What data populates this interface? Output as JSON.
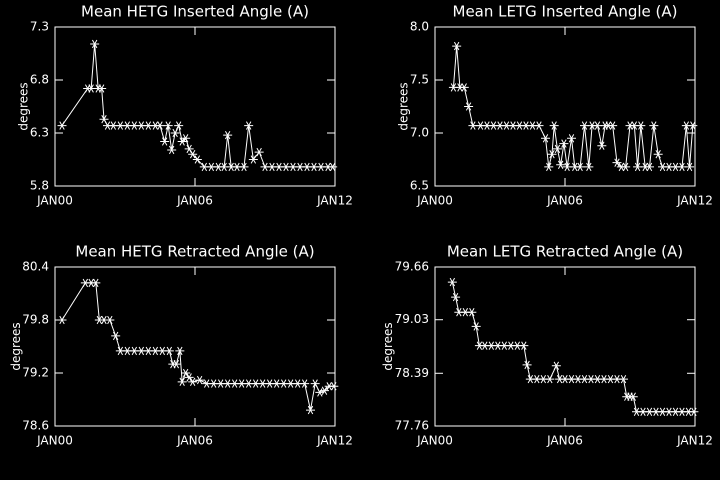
{
  "chart_data": [
    {
      "type": "line",
      "title": "Mean HETG Inserted Angle (A)",
      "ylabel": "degrees",
      "color": "#ffffff",
      "marker": "asterisk",
      "xlim": [
        2000,
        2012
      ],
      "xticks": [
        {
          "value": 2000,
          "label": "JAN00"
        },
        {
          "value": 2006,
          "label": "JAN06"
        },
        {
          "value": 2012,
          "label": "JAN12"
        }
      ],
      "ylim": [
        5.8,
        7.3
      ],
      "yticks": [
        5.8,
        6.3,
        6.8,
        7.3
      ],
      "x": [
        2000.3,
        2001.4,
        2001.55,
        2001.7,
        2001.85,
        2002.0,
        2002.1,
        2002.25,
        2002.5,
        2002.8,
        2003.1,
        2003.4,
        2003.7,
        2004.0,
        2004.3,
        2004.5,
        2004.7,
        2004.85,
        2005.0,
        2005.15,
        2005.3,
        2005.45,
        2005.6,
        2005.75,
        2005.9,
        2006.1,
        2006.4,
        2006.7,
        2007.0,
        2007.25,
        2007.4,
        2007.55,
        2007.8,
        2008.1,
        2008.3,
        2008.5,
        2008.75,
        2009.0,
        2009.3,
        2009.6,
        2009.9,
        2010.2,
        2010.5,
        2010.8,
        2011.1,
        2011.4,
        2011.7,
        2011.9
      ],
      "values": [
        6.37,
        6.72,
        6.72,
        7.14,
        6.72,
        6.72,
        6.43,
        6.37,
        6.37,
        6.37,
        6.37,
        6.37,
        6.37,
        6.37,
        6.37,
        6.37,
        6.22,
        6.37,
        6.14,
        6.3,
        6.37,
        6.22,
        6.25,
        6.15,
        6.1,
        6.05,
        5.98,
        5.98,
        5.98,
        5.98,
        6.28,
        5.98,
        5.98,
        5.98,
        6.37,
        6.05,
        6.12,
        5.98,
        5.98,
        5.98,
        5.98,
        5.98,
        5.98,
        5.98,
        5.98,
        5.98,
        5.98,
        5.98
      ]
    },
    {
      "type": "line",
      "title": "Mean LETG Inserted Angle (A)",
      "ylabel": "degrees",
      "color": "#ffffff",
      "marker": "asterisk",
      "xlim": [
        2000,
        2012
      ],
      "xticks": [
        {
          "value": 2000,
          "label": "JAN00"
        },
        {
          "value": 2006,
          "label": "JAN06"
        },
        {
          "value": 2012,
          "label": "JAN12"
        }
      ],
      "ylim": [
        6.5,
        8.0
      ],
      "yticks": [
        6.5,
        {
          "value": 7,
          "label": "7.0"
        },
        7.5,
        {
          "value": 8,
          "label": "8.0"
        }
      ],
      "x": [
        2000.85,
        2001.0,
        2001.15,
        2001.35,
        2001.55,
        2001.75,
        2002.1,
        2002.4,
        2002.7,
        2003.0,
        2003.3,
        2003.6,
        2003.9,
        2004.2,
        2004.5,
        2004.8,
        2005.1,
        2005.25,
        2005.4,
        2005.5,
        2005.65,
        2005.8,
        2005.95,
        2006.1,
        2006.3,
        2006.45,
        2006.7,
        2006.9,
        2007.1,
        2007.25,
        2007.5,
        2007.7,
        2007.85,
        2008.0,
        2008.2,
        2008.4,
        2008.6,
        2008.8,
        2009.0,
        2009.2,
        2009.35,
        2009.5,
        2009.7,
        2009.9,
        2010.1,
        2010.3,
        2010.5,
        2010.8,
        2011.1,
        2011.4,
        2011.6,
        2011.75,
        2011.9
      ],
      "values": [
        7.43,
        7.82,
        7.43,
        7.43,
        7.25,
        7.07,
        7.07,
        7.07,
        7.07,
        7.07,
        7.07,
        7.07,
        7.07,
        7.07,
        7.07,
        7.07,
        6.95,
        6.68,
        6.8,
        7.07,
        6.85,
        6.7,
        6.9,
        6.68,
        6.95,
        6.68,
        6.68,
        7.07,
        6.68,
        7.07,
        7.07,
        6.88,
        7.07,
        7.07,
        7.07,
        6.72,
        6.68,
        6.68,
        7.07,
        7.07,
        6.68,
        7.07,
        6.68,
        6.68,
        7.07,
        6.8,
        6.68,
        6.68,
        6.68,
        6.68,
        7.07,
        6.68,
        7.07
      ]
    },
    {
      "type": "line",
      "title": "Mean HETG Retracted Angle (A)",
      "ylabel": "degrees",
      "color": "#ffffff",
      "marker": "asterisk",
      "xlim": [
        2000,
        2012
      ],
      "xticks": [
        {
          "value": 2000,
          "label": "JAN00"
        },
        {
          "value": 2006,
          "label": "JAN06"
        },
        {
          "value": 2012,
          "label": "JAN12"
        }
      ],
      "ylim": [
        78.6,
        80.4
      ],
      "yticks": [
        78.6,
        79.2,
        79.8,
        80.4
      ],
      "x": [
        2000.3,
        2001.3,
        2001.55,
        2001.75,
        2001.9,
        2002.1,
        2002.35,
        2002.6,
        2002.8,
        2003.1,
        2003.4,
        2003.7,
        2004.0,
        2004.3,
        2004.6,
        2004.9,
        2005.05,
        2005.2,
        2005.35,
        2005.45,
        2005.6,
        2005.75,
        2005.9,
        2006.2,
        2006.5,
        2006.8,
        2007.1,
        2007.4,
        2007.7,
        2008.0,
        2008.3,
        2008.6,
        2008.9,
        2009.2,
        2009.5,
        2009.8,
        2010.1,
        2010.4,
        2010.7,
        2010.95,
        2011.15,
        2011.35,
        2011.55,
        2011.75,
        2011.95
      ],
      "values": [
        79.8,
        80.22,
        80.22,
        80.22,
        79.8,
        79.8,
        79.8,
        79.62,
        79.45,
        79.45,
        79.45,
        79.45,
        79.45,
        79.45,
        79.45,
        79.45,
        79.3,
        79.3,
        79.45,
        79.1,
        79.2,
        79.15,
        79.1,
        79.12,
        79.08,
        79.08,
        79.08,
        79.08,
        79.08,
        79.08,
        79.08,
        79.08,
        79.08,
        79.08,
        79.08,
        79.08,
        79.08,
        79.08,
        79.08,
        78.78,
        79.08,
        78.98,
        79.0,
        79.05,
        79.05
      ]
    },
    {
      "type": "line",
      "title": "Mean LETG Retracted Angle (A)",
      "ylabel": "degrees",
      "color": "#ffffff",
      "marker": "asterisk",
      "xlim": [
        2000,
        2012
      ],
      "xticks": [
        {
          "value": 2000,
          "label": "JAN00"
        },
        {
          "value": 2006,
          "label": "JAN06"
        },
        {
          "value": 2012,
          "label": "JAN12"
        }
      ],
      "ylim": [
        77.76,
        79.66
      ],
      "yticks": [
        77.76,
        78.39,
        79.03,
        79.66
      ],
      "x": [
        2000.8,
        2000.95,
        2001.1,
        2001.4,
        2001.7,
        2001.9,
        2002.05,
        2002.3,
        2002.6,
        2002.9,
        2003.2,
        2003.5,
        2003.8,
        2004.1,
        2004.25,
        2004.4,
        2004.7,
        2005.0,
        2005.3,
        2005.6,
        2005.75,
        2006.0,
        2006.3,
        2006.6,
        2006.9,
        2007.2,
        2007.5,
        2007.8,
        2008.1,
        2008.4,
        2008.7,
        2008.85,
        2009.0,
        2009.15,
        2009.3,
        2009.6,
        2009.9,
        2010.2,
        2010.5,
        2010.8,
        2011.1,
        2011.4,
        2011.7,
        2011.95
      ],
      "values": [
        79.48,
        79.3,
        79.12,
        79.12,
        79.12,
        78.95,
        78.72,
        78.72,
        78.72,
        78.72,
        78.72,
        78.72,
        78.72,
        78.72,
        78.49,
        78.32,
        78.32,
        78.32,
        78.32,
        78.48,
        78.32,
        78.32,
        78.32,
        78.32,
        78.32,
        78.32,
        78.32,
        78.32,
        78.32,
        78.32,
        78.32,
        78.11,
        78.11,
        78.11,
        77.93,
        77.93,
        77.93,
        77.93,
        77.93,
        77.93,
        77.93,
        77.93,
        77.93,
        77.93
      ]
    }
  ]
}
